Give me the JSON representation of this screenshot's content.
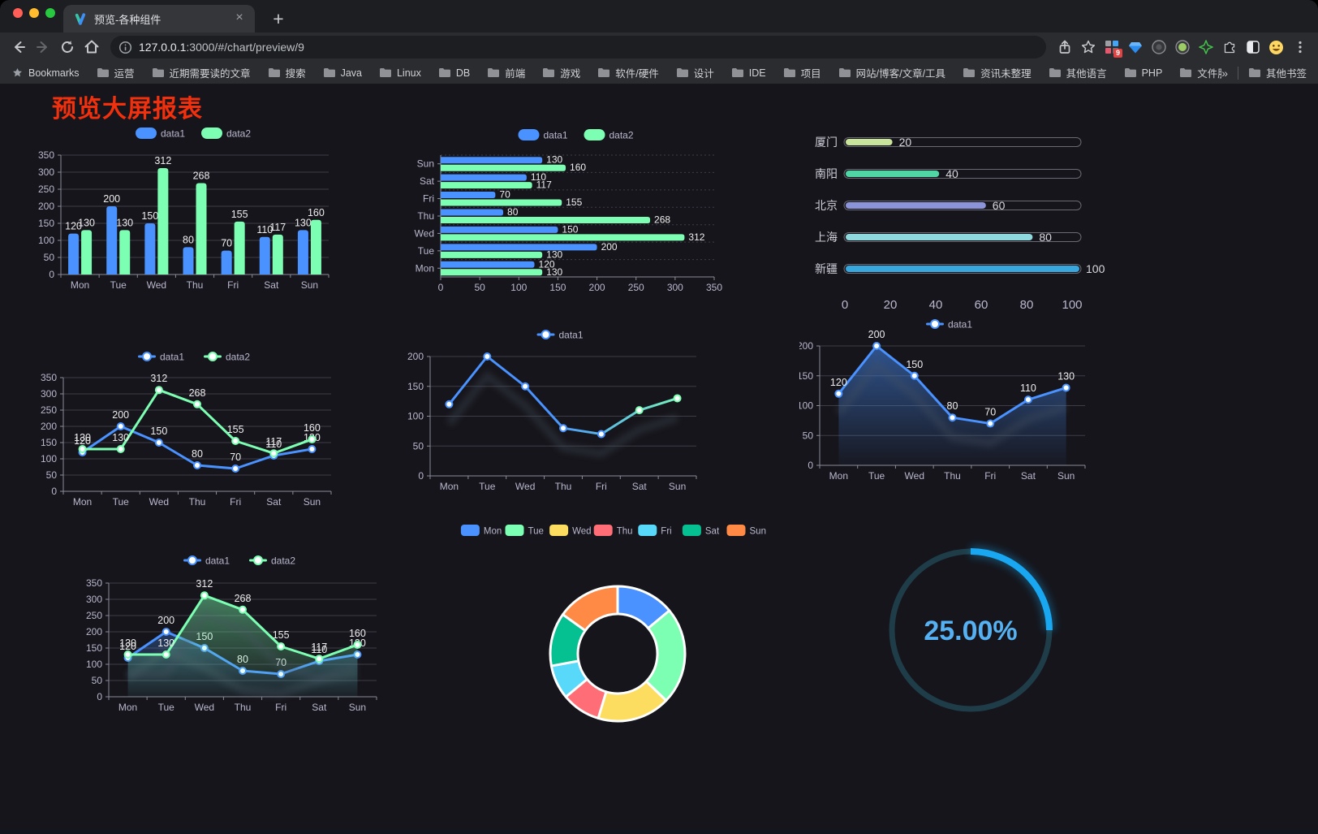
{
  "browser": {
    "traffic_lights": [
      "#ff5f57",
      "#febc2e",
      "#28c840"
    ],
    "tab_title": "预览-各种组件",
    "close_glyph": "×",
    "newtab_glyph": "+",
    "url_host": "127.0.0.1",
    "url_rest": ":3000/#/chart/preview/9",
    "extension_badge": "9",
    "bookmarks_bar": {
      "bookmarks_label": "Bookmarks",
      "folders": [
        "运营",
        "近期需要读的文章",
        "搜索",
        "Java",
        "Linux",
        "DB",
        "前端",
        "游戏",
        "软件/硬件",
        "设计",
        "IDE",
        "项目",
        "网站/博客/文章/工具",
        "资讯未整理",
        "其他语言",
        "PHP",
        "文件服务器"
      ],
      "overflow": "»",
      "other_bookmarks": "其他书签"
    }
  },
  "page": {
    "title": "预览大屏报表"
  },
  "chart_data": [
    {
      "id": "bar-grouped",
      "type": "bar",
      "categories": [
        "Mon",
        "Tue",
        "Wed",
        "Thu",
        "Fri",
        "Sat",
        "Sun"
      ],
      "series": [
        {
          "name": "data1",
          "color": "#4992ff",
          "values": [
            120,
            200,
            150,
            80,
            70,
            110,
            130
          ]
        },
        {
          "name": "data2",
          "color": "#7cffb2",
          "values": [
            130,
            130,
            312,
            268,
            155,
            117,
            160
          ]
        }
      ],
      "ylim": [
        0,
        350
      ],
      "ytick": 50,
      "labels": true,
      "legend_position": "top",
      "grid": true
    },
    {
      "id": "bar-horizontal",
      "type": "hbar",
      "categories": [
        "Sun",
        "Sat",
        "Fri",
        "Thu",
        "Wed",
        "Tue",
        "Mon"
      ],
      "series": [
        {
          "name": "data1",
          "color": "#4992ff",
          "values": [
            130,
            110,
            70,
            80,
            150,
            200,
            120
          ]
        },
        {
          "name": "data2",
          "color": "#7cffb2",
          "values": [
            160,
            117,
            155,
            268,
            312,
            130,
            130
          ]
        }
      ],
      "xlim": [
        0,
        350
      ],
      "xtick": 50,
      "labels": true,
      "legend_position": "top",
      "grid": true
    },
    {
      "id": "progress-cities",
      "type": "progress",
      "items": [
        {
          "label": "厦门",
          "value": 20,
          "color": "#c9e59b"
        },
        {
          "label": "南阳",
          "value": 40,
          "color": "#50d6a5"
        },
        {
          "label": "北京",
          "value": 60,
          "color": "#8b93d9"
        },
        {
          "label": "上海",
          "value": 80,
          "color": "#8fd9de"
        },
        {
          "label": "新疆",
          "value": 100,
          "color": "#38a7de"
        }
      ],
      "xlim": [
        0,
        100
      ],
      "xticks": [
        0,
        20,
        40,
        60,
        80,
        100
      ]
    },
    {
      "id": "line-basic",
      "type": "line",
      "categories": [
        "Mon",
        "Tue",
        "Wed",
        "Thu",
        "Fri",
        "Sat",
        "Sun"
      ],
      "series": [
        {
          "name": "data1",
          "color": "#4992ff",
          "values": [
            120,
            200,
            150,
            80,
            70,
            110,
            130
          ]
        },
        {
          "name": "data2",
          "color": "#7cffb2",
          "values": [
            130,
            130,
            312,
            268,
            155,
            117,
            160
          ]
        }
      ],
      "ylim": [
        0,
        350
      ],
      "ytick": 50,
      "labels": true,
      "legend_position": "top",
      "grid": true
    },
    {
      "id": "line-gradient",
      "type": "line",
      "categories": [
        "Mon",
        "Tue",
        "Wed",
        "Thu",
        "Fri",
        "Sat",
        "Sun"
      ],
      "series": [
        {
          "name": "data1",
          "color": "#4992ff",
          "gradient": [
            "#4992ff",
            "#7cffb2"
          ],
          "values": [
            120,
            200,
            150,
            80,
            70,
            110,
            130
          ]
        }
      ],
      "ylim": [
        0,
        200
      ],
      "ytick": 50,
      "labels": false,
      "shadow": true,
      "legend_position": "top",
      "grid": true
    },
    {
      "id": "line-area",
      "type": "line",
      "categories": [
        "Mon",
        "Tue",
        "Wed",
        "Thu",
        "Fri",
        "Sat",
        "Sun"
      ],
      "series": [
        {
          "name": "data1",
          "color": "#4992ff",
          "area": true,
          "values": [
            120,
            200,
            150,
            80,
            70,
            110,
            130
          ]
        }
      ],
      "ylim": [
        0,
        200
      ],
      "ytick": 50,
      "labels": true,
      "shadow": true,
      "legend_position": "top",
      "grid": true
    },
    {
      "id": "line-two-area",
      "type": "line",
      "categories": [
        "Mon",
        "Tue",
        "Wed",
        "Thu",
        "Fri",
        "Sat",
        "Sun"
      ],
      "series": [
        {
          "name": "data1",
          "color": "#4992ff",
          "area": true,
          "values": [
            120,
            200,
            150,
            80,
            70,
            110,
            130
          ]
        },
        {
          "name": "data2",
          "color": "#7cffb2",
          "area": true,
          "values": [
            130,
            130,
            312,
            268,
            155,
            117,
            160
          ]
        }
      ],
      "ylim": [
        0,
        350
      ],
      "ytick": 50,
      "labels": true,
      "shadow": true,
      "legend_position": "top",
      "grid": true
    },
    {
      "id": "donut",
      "type": "pie",
      "categories": [
        "Mon",
        "Tue",
        "Wed",
        "Thu",
        "Fri",
        "Sat",
        "Sun"
      ],
      "values": [
        120,
        200,
        150,
        80,
        70,
        110,
        130
      ],
      "colors": [
        "#4992ff",
        "#7cffb2",
        "#fddd60",
        "#ff6e76",
        "#58d9f9",
        "#05c091",
        "#ff8a45"
      ],
      "legend_position": "top"
    },
    {
      "id": "gauge",
      "type": "gauge",
      "percent": 25,
      "value_label": "25.00%",
      "color": "#18a7f0",
      "track_color": "#1e3d49",
      "text_color": "#55b1f1"
    }
  ]
}
